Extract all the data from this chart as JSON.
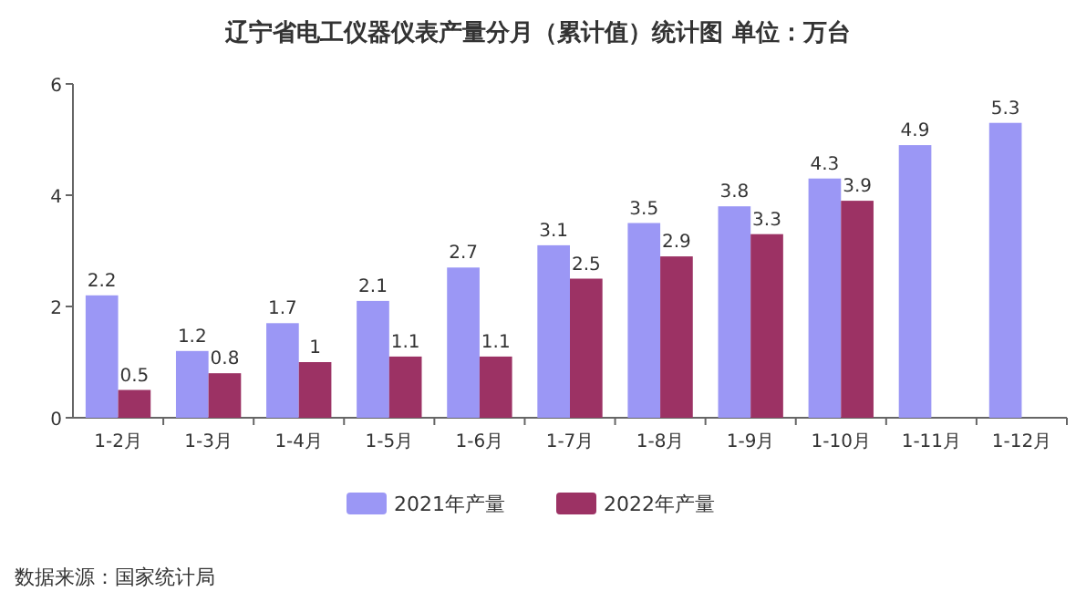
{
  "chart_data": {
    "type": "bar",
    "title": "辽宁省电工仪器仪表产量分月（累计值）统计图 单位：万台",
    "categories": [
      "1-2月",
      "1-3月",
      "1-4月",
      "1-5月",
      "1-6月",
      "1-7月",
      "1-8月",
      "1-9月",
      "1-10月",
      "1-11月",
      "1-12月"
    ],
    "series": [
      {
        "name": "2021年产量",
        "color": "#9b97f5",
        "values": [
          2.2,
          1.2,
          1.7,
          2.1,
          2.7,
          3.1,
          3.5,
          3.8,
          4.3,
          4.9,
          5.3
        ]
      },
      {
        "name": "2022年产量",
        "color": "#9c3264",
        "values": [
          0.5,
          0.8,
          1,
          1.1,
          1.1,
          2.5,
          2.9,
          3.3,
          3.9,
          null,
          null
        ]
      }
    ],
    "ylim": [
      0,
      6
    ],
    "yticks": [
      0,
      2,
      4,
      6
    ],
    "data_labels": true,
    "legend": "bottom",
    "annotations": [
      "数据来源：国家统计局"
    ]
  }
}
